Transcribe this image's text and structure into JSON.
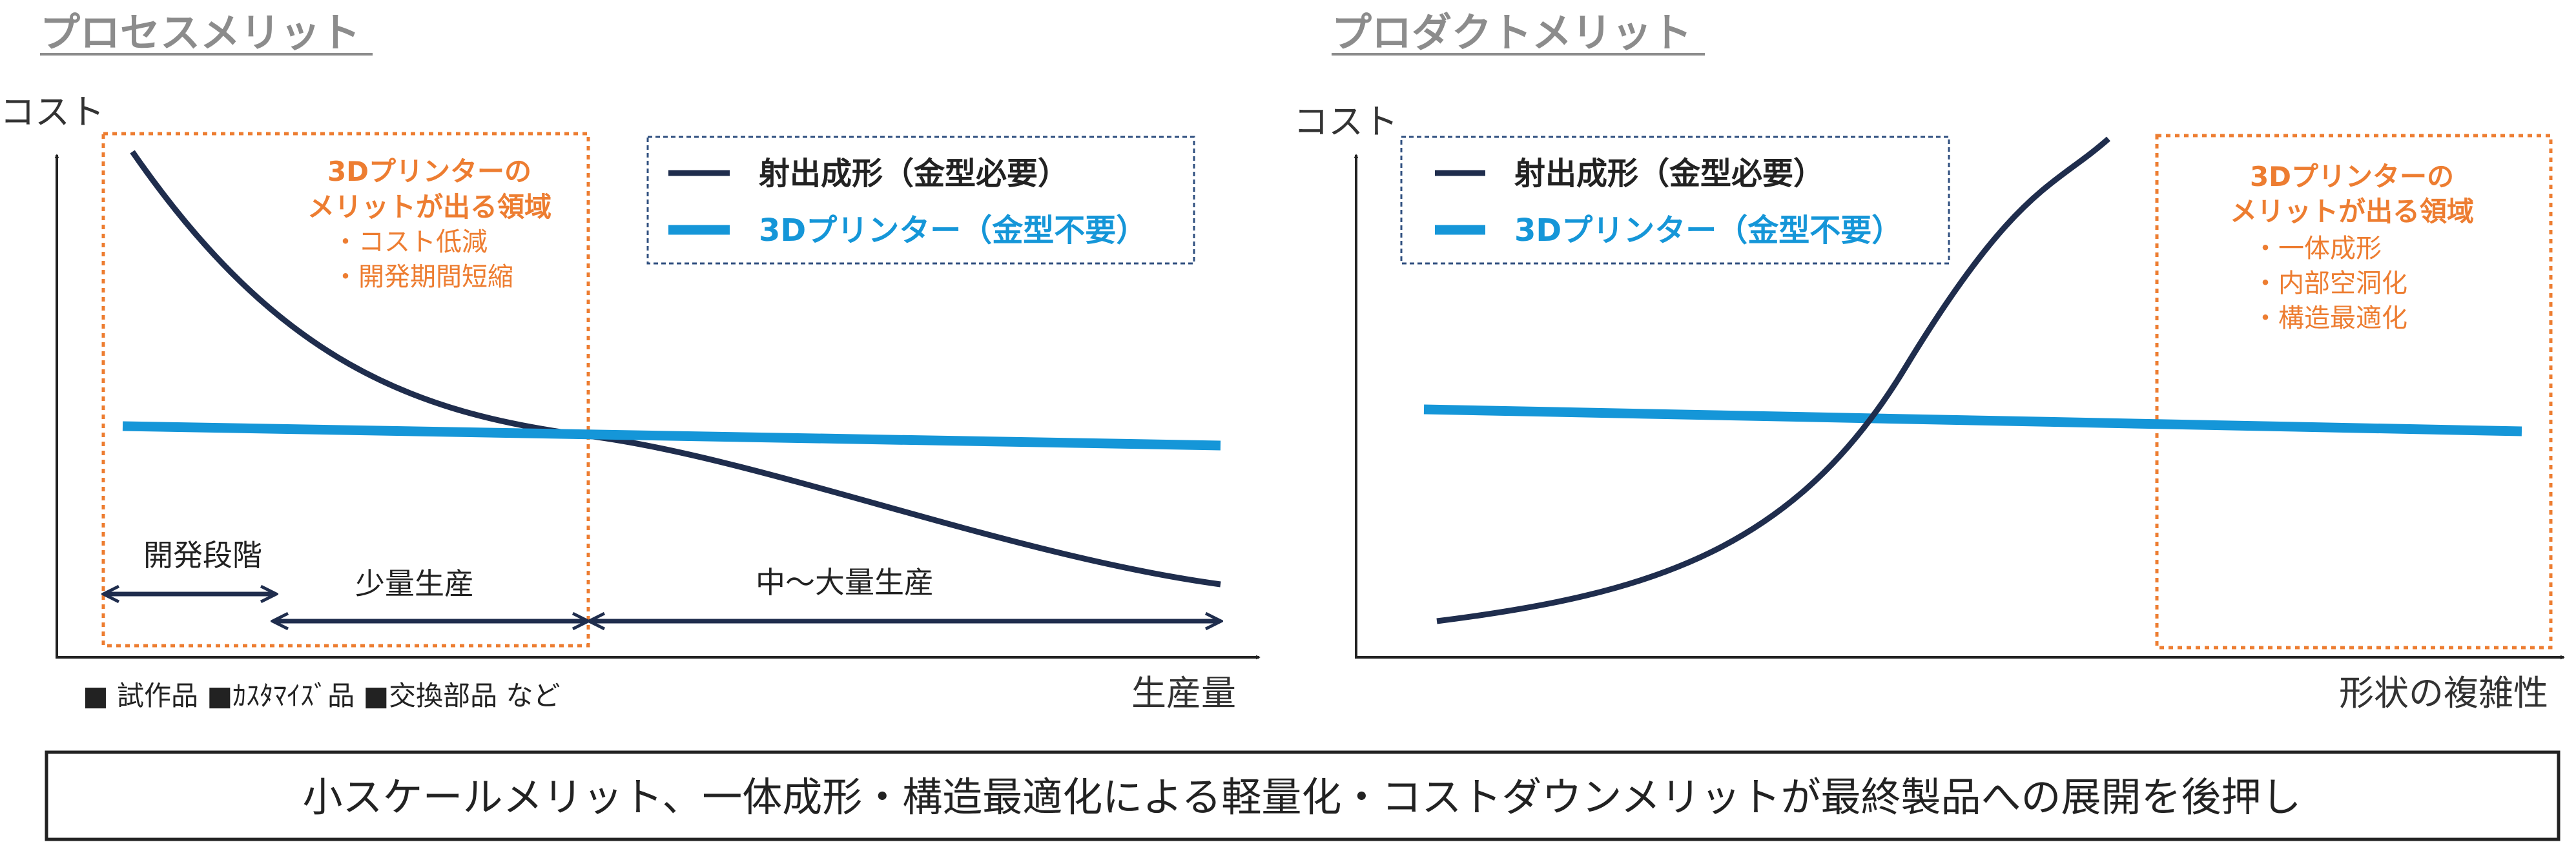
{
  "colors": {
    "injection": "#1f2d4d",
    "printer": "#1596d8",
    "highlight": "#ed7d31",
    "legend_border": "#2f4f7f",
    "arrow": "#1f2d4d",
    "axis": "#222222",
    "title": "#8c8c8c"
  },
  "left": {
    "title": "プロセスメリット",
    "y_axis_label": "コスト",
    "x_axis_label": "生産量",
    "legend": [
      {
        "label": "射出成形（金型必要）",
        "color": "#1f2d4d"
      },
      {
        "label": "3Dプリンター（金型不要）",
        "color": "#1596d8"
      }
    ],
    "annotation": {
      "heading_line1": "3Dプリンターの",
      "heading_line2": "メリットが出る領域",
      "items": [
        "・コスト低減",
        "・開発期間短縮"
      ]
    },
    "phases": {
      "development": "開発段階",
      "small": "少量生産",
      "medium_large": "中～大量生産"
    },
    "footnote": "■ 試作品 ■ｶｽﾀﾏｲｽﾞ品 ■交換部品 など"
  },
  "right": {
    "title": "プロダクトメリット",
    "y_axis_label": "コスト",
    "x_axis_label": "形状の複雑性",
    "legend": [
      {
        "label": "射出成形（金型必要）",
        "color": "#1f2d4d"
      },
      {
        "label": "3Dプリンター（金型不要）",
        "color": "#1596d8"
      }
    ],
    "annotation": {
      "heading_line1": "3Dプリンターの",
      "heading_line2": "メリットが出る領域",
      "items": [
        "・一体成形",
        "・内部空洞化",
        "・構造最適化"
      ]
    }
  },
  "banner": {
    "text": "小スケールメリット、一体成形・構造最適化による軽量化・コストダウンメリットが最終製品への展開を後押し"
  }
}
